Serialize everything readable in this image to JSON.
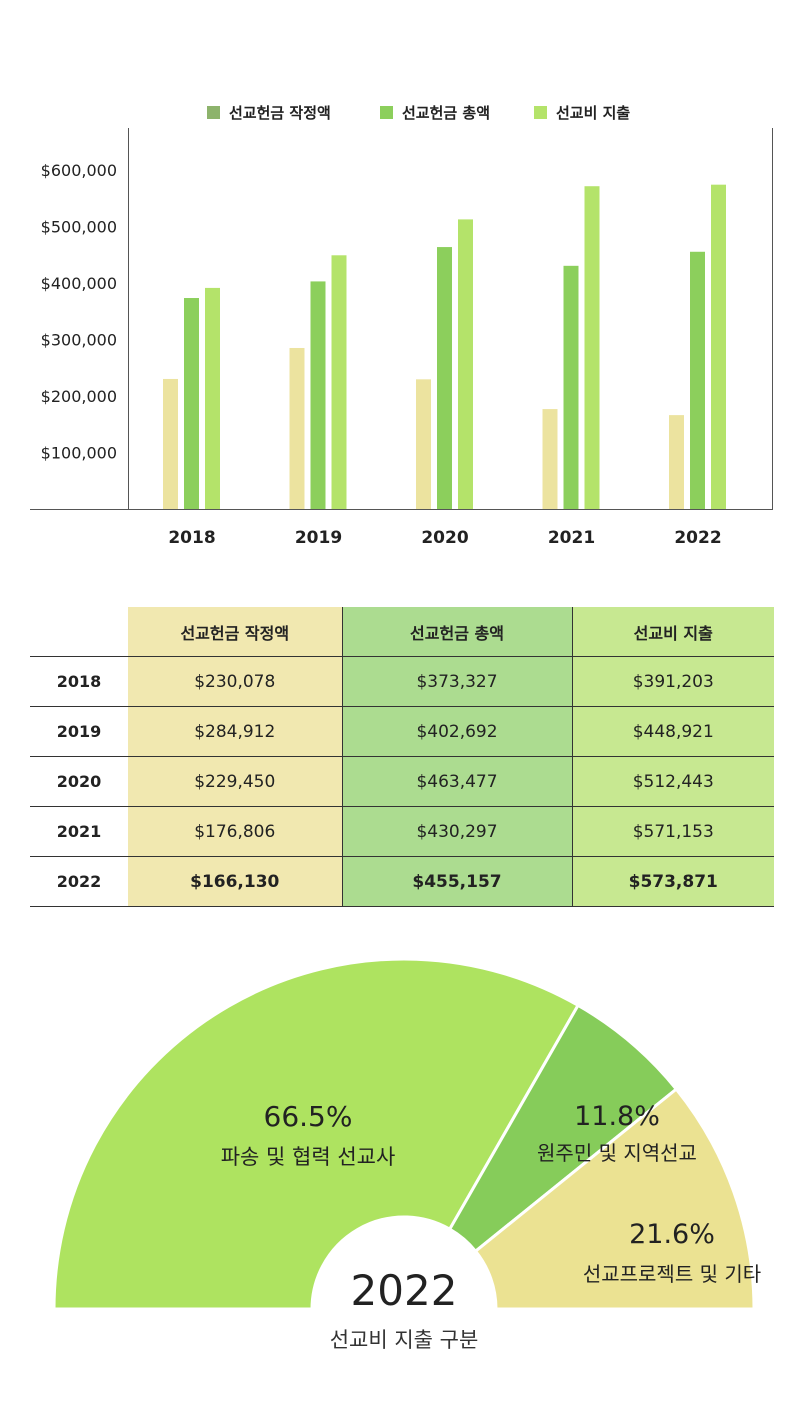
{
  "chart_data": [
    {
      "type": "bar",
      "title": "",
      "categories": [
        "2018",
        "2019",
        "2020",
        "2021",
        "2022"
      ],
      "series": [
        {
          "name": "선교헌금 작정액",
          "legend_color": "#8db36c",
          "bar_color": "#ece39f",
          "values": [
            230078,
            284912,
            229450,
            176806,
            166130
          ]
        },
        {
          "name": "선교헌금 총액",
          "legend_color": "#8ccf5c",
          "bar_color": "#8ccf5c",
          "values": [
            373327,
            402692,
            463477,
            430297,
            455157
          ]
        },
        {
          "name": "선교비 지출",
          "legend_color": "#b4e36a",
          "bar_color": "#b4e36a",
          "values": [
            391203,
            448921,
            512443,
            571153,
            573871
          ]
        }
      ],
      "yticks": [
        100000,
        200000,
        300000,
        400000,
        500000,
        600000
      ],
      "ytick_labels": [
        "$100,000",
        "$200,000",
        "$300,000",
        "$400,000",
        "$500,000",
        "$600,000"
      ],
      "ylim": [
        0,
        660000
      ],
      "legend_position": "top-center"
    },
    {
      "type": "table",
      "columns": [
        "선교헌금 작정액",
        "선교헌금 총액",
        "선교비 지출"
      ],
      "rows": [
        {
          "year": "2018",
          "cells": [
            "$230,078",
            "$373,327",
            "$391,203"
          ],
          "bold": false
        },
        {
          "year": "2019",
          "cells": [
            "$284,912",
            "$402,692",
            "$448,921"
          ],
          "bold": false
        },
        {
          "year": "2020",
          "cells": [
            "$229,450",
            "$463,477",
            "$512,443"
          ],
          "bold": false
        },
        {
          "year": "2021",
          "cells": [
            "$176,806",
            "$430,297",
            "$571,153"
          ],
          "bold": false
        },
        {
          "year": "2022",
          "cells": [
            "$166,130",
            "$455,157",
            "$573,871"
          ],
          "bold": true
        }
      ]
    },
    {
      "type": "pie",
      "style": "semi-donut",
      "center_label": "2022",
      "caption": "선교비 지출 구분",
      "slices": [
        {
          "label": "파송 및 협력 선교사",
          "value": 66.5,
          "display": "66.5%",
          "color": "#aee360"
        },
        {
          "label": "원주민 및 지역선교",
          "value": 11.8,
          "display": "11.8%",
          "color": "#86cc5a"
        },
        {
          "label": "선교프로젝트 및 기타",
          "value": 21.6,
          "display": "21.6%",
          "color": "#ebe292"
        }
      ]
    }
  ]
}
